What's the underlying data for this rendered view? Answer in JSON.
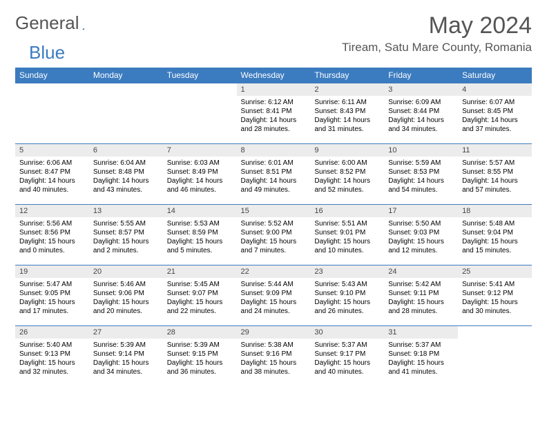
{
  "brand": {
    "part1": "General",
    "part2": "Blue"
  },
  "title": "May 2024",
  "location": "Tiream, Satu Mare County, Romania",
  "colors": {
    "accent": "#3b7bbf",
    "headerText": "#555",
    "dayBg": "#ececec"
  },
  "weekdays": [
    "Sunday",
    "Monday",
    "Tuesday",
    "Wednesday",
    "Thursday",
    "Friday",
    "Saturday"
  ],
  "weeks": [
    [
      {
        "empty": true
      },
      {
        "empty": true
      },
      {
        "empty": true
      },
      {
        "n": "1",
        "sr": "6:12 AM",
        "ss": "8:41 PM",
        "dl": "14 hours and 28 minutes."
      },
      {
        "n": "2",
        "sr": "6:11 AM",
        "ss": "8:43 PM",
        "dl": "14 hours and 31 minutes."
      },
      {
        "n": "3",
        "sr": "6:09 AM",
        "ss": "8:44 PM",
        "dl": "14 hours and 34 minutes."
      },
      {
        "n": "4",
        "sr": "6:07 AM",
        "ss": "8:45 PM",
        "dl": "14 hours and 37 minutes."
      }
    ],
    [
      {
        "n": "5",
        "sr": "6:06 AM",
        "ss": "8:47 PM",
        "dl": "14 hours and 40 minutes."
      },
      {
        "n": "6",
        "sr": "6:04 AM",
        "ss": "8:48 PM",
        "dl": "14 hours and 43 minutes."
      },
      {
        "n": "7",
        "sr": "6:03 AM",
        "ss": "8:49 PM",
        "dl": "14 hours and 46 minutes."
      },
      {
        "n": "8",
        "sr": "6:01 AM",
        "ss": "8:51 PM",
        "dl": "14 hours and 49 minutes."
      },
      {
        "n": "9",
        "sr": "6:00 AM",
        "ss": "8:52 PM",
        "dl": "14 hours and 52 minutes."
      },
      {
        "n": "10",
        "sr": "5:59 AM",
        "ss": "8:53 PM",
        "dl": "14 hours and 54 minutes."
      },
      {
        "n": "11",
        "sr": "5:57 AM",
        "ss": "8:55 PM",
        "dl": "14 hours and 57 minutes."
      }
    ],
    [
      {
        "n": "12",
        "sr": "5:56 AM",
        "ss": "8:56 PM",
        "dl": "15 hours and 0 minutes."
      },
      {
        "n": "13",
        "sr": "5:55 AM",
        "ss": "8:57 PM",
        "dl": "15 hours and 2 minutes."
      },
      {
        "n": "14",
        "sr": "5:53 AM",
        "ss": "8:59 PM",
        "dl": "15 hours and 5 minutes."
      },
      {
        "n": "15",
        "sr": "5:52 AM",
        "ss": "9:00 PM",
        "dl": "15 hours and 7 minutes."
      },
      {
        "n": "16",
        "sr": "5:51 AM",
        "ss": "9:01 PM",
        "dl": "15 hours and 10 minutes."
      },
      {
        "n": "17",
        "sr": "5:50 AM",
        "ss": "9:03 PM",
        "dl": "15 hours and 12 minutes."
      },
      {
        "n": "18",
        "sr": "5:48 AM",
        "ss": "9:04 PM",
        "dl": "15 hours and 15 minutes."
      }
    ],
    [
      {
        "n": "19",
        "sr": "5:47 AM",
        "ss": "9:05 PM",
        "dl": "15 hours and 17 minutes."
      },
      {
        "n": "20",
        "sr": "5:46 AM",
        "ss": "9:06 PM",
        "dl": "15 hours and 20 minutes."
      },
      {
        "n": "21",
        "sr": "5:45 AM",
        "ss": "9:07 PM",
        "dl": "15 hours and 22 minutes."
      },
      {
        "n": "22",
        "sr": "5:44 AM",
        "ss": "9:09 PM",
        "dl": "15 hours and 24 minutes."
      },
      {
        "n": "23",
        "sr": "5:43 AM",
        "ss": "9:10 PM",
        "dl": "15 hours and 26 minutes."
      },
      {
        "n": "24",
        "sr": "5:42 AM",
        "ss": "9:11 PM",
        "dl": "15 hours and 28 minutes."
      },
      {
        "n": "25",
        "sr": "5:41 AM",
        "ss": "9:12 PM",
        "dl": "15 hours and 30 minutes."
      }
    ],
    [
      {
        "n": "26",
        "sr": "5:40 AM",
        "ss": "9:13 PM",
        "dl": "15 hours and 32 minutes."
      },
      {
        "n": "27",
        "sr": "5:39 AM",
        "ss": "9:14 PM",
        "dl": "15 hours and 34 minutes."
      },
      {
        "n": "28",
        "sr": "5:39 AM",
        "ss": "9:15 PM",
        "dl": "15 hours and 36 minutes."
      },
      {
        "n": "29",
        "sr": "5:38 AM",
        "ss": "9:16 PM",
        "dl": "15 hours and 38 minutes."
      },
      {
        "n": "30",
        "sr": "5:37 AM",
        "ss": "9:17 PM",
        "dl": "15 hours and 40 minutes."
      },
      {
        "n": "31",
        "sr": "5:37 AM",
        "ss": "9:18 PM",
        "dl": "15 hours and 41 minutes."
      },
      {
        "empty": true
      }
    ]
  ],
  "labels": {
    "sunrise": "Sunrise: ",
    "sunset": "Sunset: ",
    "daylight": "Daylight: "
  }
}
